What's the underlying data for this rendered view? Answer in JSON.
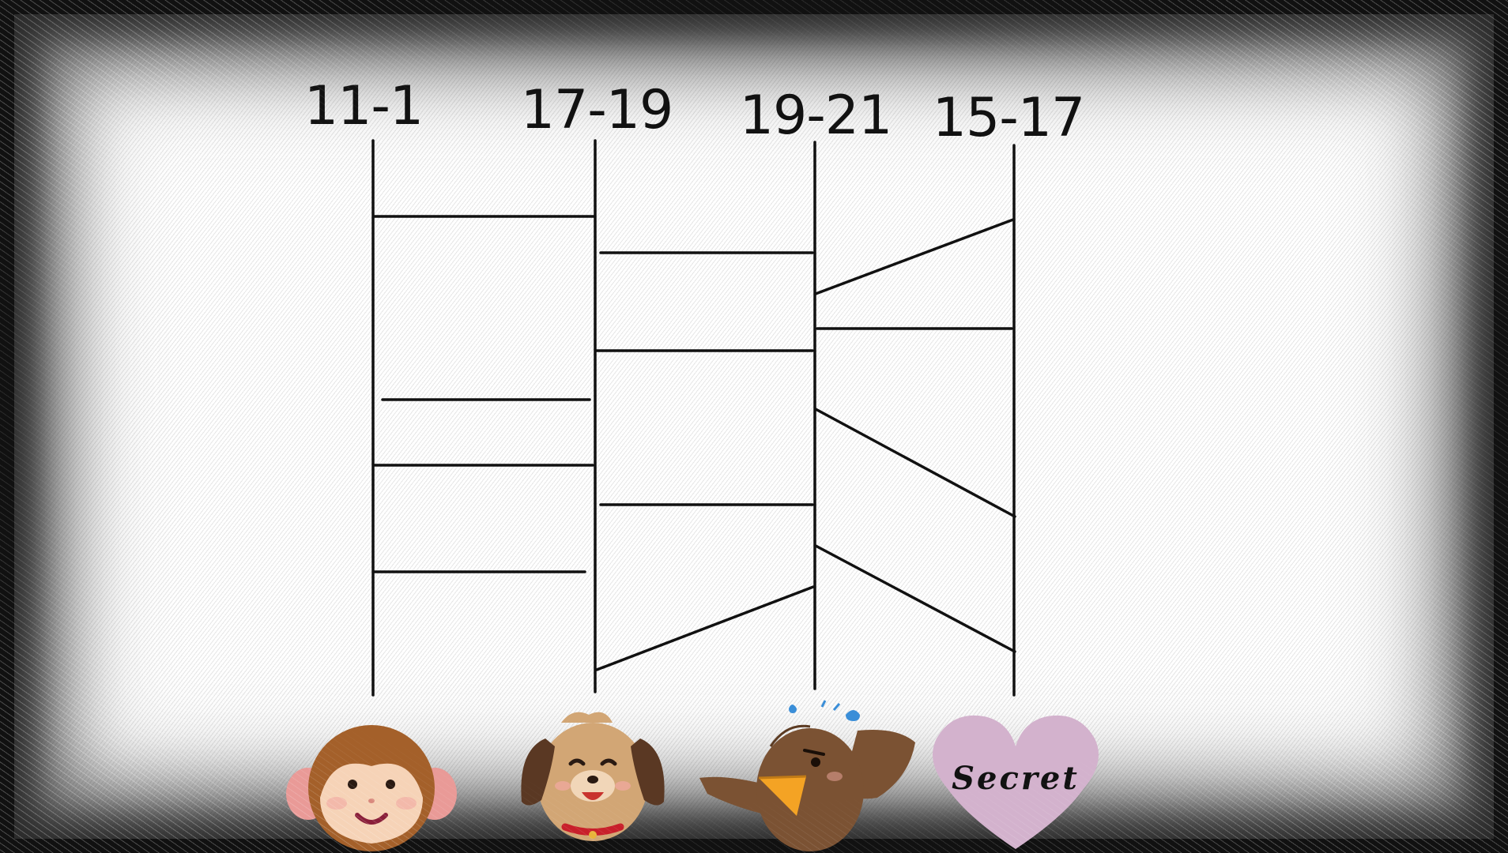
{
  "columns": [
    {
      "id": "monkey",
      "label": "11-1",
      "character": "monkey-icon"
    },
    {
      "id": "dog",
      "label": "17-19",
      "character": "dog-icon"
    },
    {
      "id": "bird",
      "label": "19-21",
      "character": "bird-icon"
    },
    {
      "id": "secret",
      "label": "15-17",
      "character": "heart-icon",
      "text": "Secret"
    }
  ],
  "colors": {
    "line": "#111111",
    "monkey_fur": "#a4602a",
    "monkey_face": "#f6d3b7",
    "dog_fur": "#d2a675",
    "bird_fur": "#7b5233",
    "beak": "#f4a324",
    "heart": "#d3b2cd"
  }
}
